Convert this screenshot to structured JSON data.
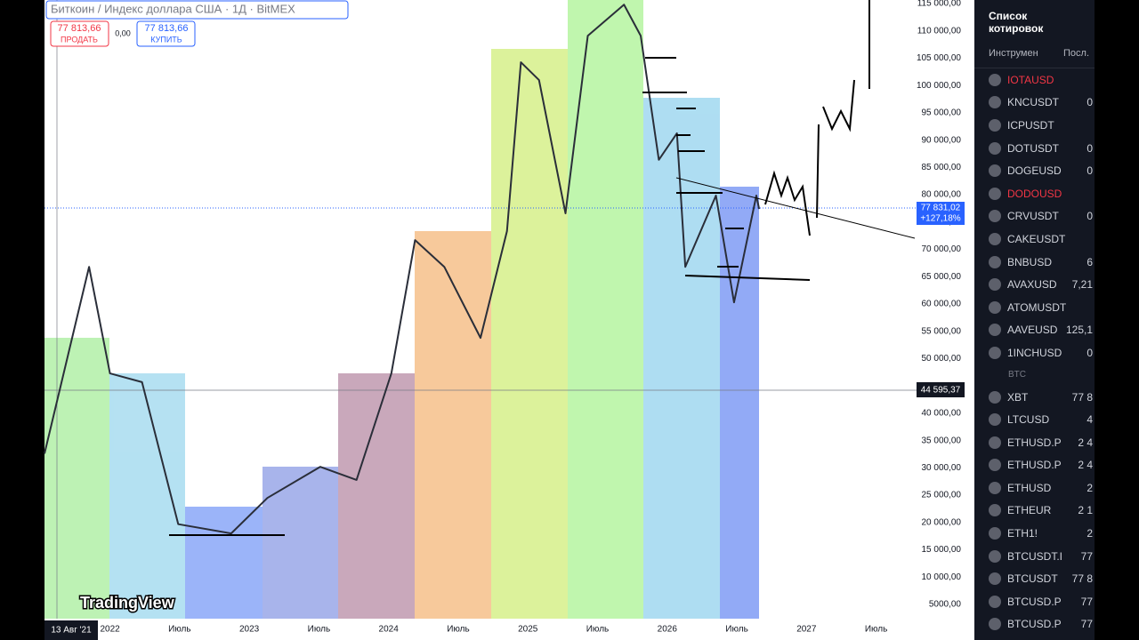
{
  "header": {
    "symbol": "Биткоин / Индекс доллара США · 1Д · BitMEX",
    "sell_price": "77 813,66",
    "sell_label": "ПРОДАТЬ",
    "spread": "0,00",
    "buy_price": "77 813,66",
    "buy_label": "КУПИТЬ"
  },
  "logo": "TradingView",
  "last_price": {
    "value": "77 831,02",
    "change": "+127,18%"
  },
  "crosshair": {
    "price": "44 595,37",
    "date": "13 Авг '21"
  },
  "chart_data": {
    "type": "line",
    "color": "#2a2e39",
    "x": [
      2021.53,
      2021.85,
      2022.0,
      2022.23,
      2022.49,
      2022.87,
      2023.13,
      2023.51,
      2023.77,
      2024.02,
      2024.19,
      2024.4,
      2024.66,
      2024.85,
      2024.95,
      2025.08,
      2025.27,
      2025.43,
      2025.69,
      2025.81,
      2025.94,
      2026.07,
      2026.13,
      2026.35,
      2026.48,
      2026.64,
      2026.66
    ],
    "values": [
      32600,
      66800,
      47300,
      45700,
      19700,
      18000,
      24500,
      30200,
      27800,
      47300,
      71700,
      66800,
      53800,
      73350,
      104250,
      101000,
      76600,
      109100,
      114800,
      109100,
      86400,
      91250,
      66800,
      79850,
      60300,
      79850,
      77400
    ],
    "xlim": [
      2021.53,
      2027.79
    ],
    "ylim": [
      2400,
      115650
    ],
    "xticks": [
      {
        "value": 2022,
        "label": "2022"
      },
      {
        "value": 2022.5,
        "label": "Июль"
      },
      {
        "value": 2023,
        "label": "2023"
      },
      {
        "value": 2023.5,
        "label": "Июль"
      },
      {
        "value": 2024,
        "label": "2024"
      },
      {
        "value": 2024.5,
        "label": "Июль"
      },
      {
        "value": 2025,
        "label": "2025"
      },
      {
        "value": 2025.5,
        "label": "Июль"
      },
      {
        "value": 2026,
        "label": "2026"
      },
      {
        "value": 2026.5,
        "label": "Июль"
      },
      {
        "value": 2027,
        "label": "2027"
      },
      {
        "value": 2027.5,
        "label": "Июль"
      }
    ],
    "yticks": [
      {
        "value": 5000,
        "label": "5000,00"
      },
      {
        "value": 10000,
        "label": "10 000,00"
      },
      {
        "value": 15000,
        "label": "15 000,00"
      },
      {
        "value": 20000,
        "label": "20 000,00"
      },
      {
        "value": 25000,
        "label": "25 000,00"
      },
      {
        "value": 30000,
        "label": "30 000,00"
      },
      {
        "value": 35000,
        "label": "35 000,00"
      },
      {
        "value": 40000,
        "label": "40 000,00"
      },
      {
        "value": 45000,
        "label": "45 000,00"
      },
      {
        "value": 50000,
        "label": "50 000,00"
      },
      {
        "value": 55000,
        "label": "55 000,00"
      },
      {
        "value": 60000,
        "label": "60 000,00"
      },
      {
        "value": 65000,
        "label": "65 000,00"
      },
      {
        "value": 70000,
        "label": "70 000,00"
      },
      {
        "value": 75000,
        "label": "75 000,00"
      },
      {
        "value": 80000,
        "label": "80 000,00"
      },
      {
        "value": 85000,
        "label": "85 000,00"
      },
      {
        "value": 90000,
        "label": "90 000,00"
      },
      {
        "value": 95000,
        "label": "95 000,00"
      },
      {
        "value": 100000,
        "label": "100 000,00"
      },
      {
        "value": 105000,
        "label": "105 000,00"
      },
      {
        "value": 110000,
        "label": "110 000,00"
      },
      {
        "value": 115000,
        "label": "115 000,00"
      }
    ]
  },
  "watchlist": {
    "title": "Список котировок",
    "columns": [
      "Инструмен",
      "Посл."
    ],
    "rows": [
      [
        "IOTAUSD",
        ""
      ],
      [
        "KNCUSDT",
        "0"
      ],
      [
        "ICPUSDT",
        ""
      ],
      [
        "DOTUSDT",
        "0"
      ],
      [
        "DOGEUSD",
        "0"
      ],
      [
        "DODOUSD",
        ""
      ],
      [
        "CRVUSDT",
        "0"
      ],
      [
        "CAKEUSDT",
        ""
      ],
      [
        "BNBUSD",
        "6"
      ],
      [
        "AVAXUSD",
        "7,21"
      ],
      [
        "ATOMUSDT",
        ""
      ],
      [
        "AAVEUSD",
        "125,1"
      ],
      [
        "1INCHUSD",
        "0"
      ],
      [
        "BTC",
        ""
      ],
      [
        "XBT",
        "77 8"
      ],
      [
        "LTCUSD",
        "4"
      ],
      [
        "ETHUSD.P",
        "2 4"
      ],
      [
        "ETHUSD.P",
        "2 4"
      ],
      [
        "ETHUSD",
        "2"
      ],
      [
        "ETHEUR",
        "2 1"
      ],
      [
        "ETH1!",
        "2"
      ],
      [
        "BTCUSDT.I",
        "77"
      ],
      [
        "BTCUSDT",
        "77 8"
      ],
      [
        "BTCUSD.P",
        "77"
      ],
      [
        "BTCUSD.P",
        "77"
      ]
    ],
    "red": [
      "IOTAUSD",
      "DODOUSD"
    ]
  }
}
